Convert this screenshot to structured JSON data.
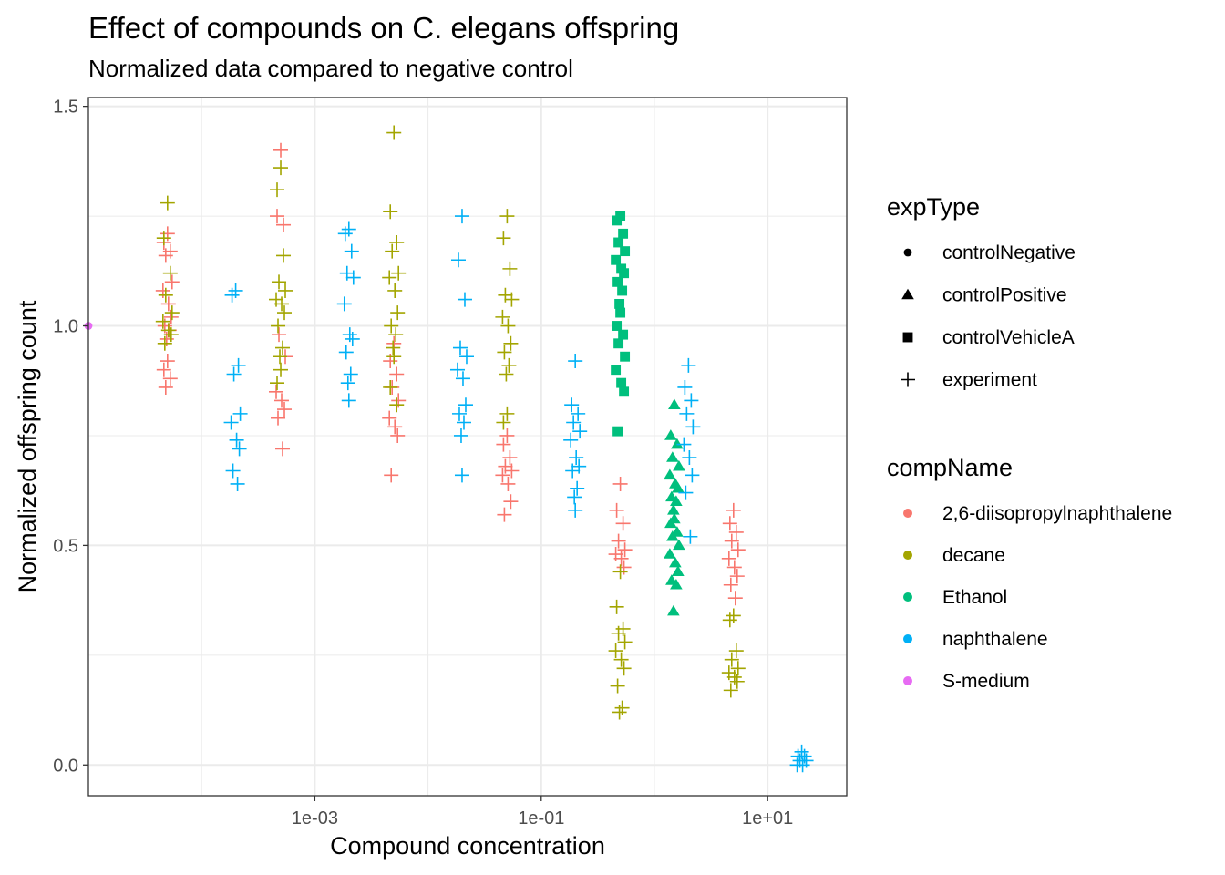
{
  "chart_data": {
    "type": "scatter",
    "title": "Effect of compounds on C. elegans offspring",
    "subtitle": "Normalized data compared to negative control",
    "xlabel": "Compound concentration",
    "ylabel": "Normalized offspring count",
    "x_scale": "log10",
    "xlim": [
      1e-05,
      50
    ],
    "ylim": [
      -0.07,
      1.52
    ],
    "x_ticks": [
      {
        "value": 0.001,
        "label": "1e-03"
      },
      {
        "value": 0.1,
        "label": "1e-01"
      },
      {
        "value": 10,
        "label": "1e+01"
      }
    ],
    "y_ticks": [
      {
        "value": 0,
        "label": "0.0"
      },
      {
        "value": 0.5,
        "label": "0.5"
      },
      {
        "value": 1,
        "label": "1.0"
      },
      {
        "value": 1.5,
        "label": "1.5"
      }
    ],
    "grid": true,
    "legend_placement": "right",
    "shape_legend": {
      "title": "expType",
      "entries": [
        {
          "label": "controlNegative",
          "shape": "circle"
        },
        {
          "label": "controlPositive",
          "shape": "triangle"
        },
        {
          "label": "controlVehicleA",
          "shape": "square"
        },
        {
          "label": "experiment",
          "shape": "plus"
        }
      ]
    },
    "color_legend": {
      "title": "compName",
      "entries": [
        {
          "label": "2,6-diisopropylnaphthalene",
          "color": "#F8766D"
        },
        {
          "label": "decane",
          "color": "#A3A500"
        },
        {
          "label": "Ethanol",
          "color": "#00BF7D"
        },
        {
          "label": "naphthalene",
          "color": "#00B0F6"
        },
        {
          "label": "S-medium",
          "color": "#E76BF3"
        }
      ]
    },
    "series": [
      {
        "name": "2,6-diisopropylnaphthalene",
        "color": "#F8766D",
        "shape": "plus",
        "points": [
          {
            "x": 5e-05,
            "y": [
              1.21,
              1.19,
              1.17,
              1.16,
              1.1,
              1.08,
              1.05,
              1.02,
              1.0,
              0.99,
              0.97,
              0.92,
              0.9,
              0.88,
              0.86
            ]
          },
          {
            "x": 0.0005,
            "y": [
              1.4,
              1.25,
              1.23,
              0.98,
              0.93,
              0.85,
              0.83,
              0.81,
              0.79,
              0.72
            ]
          },
          {
            "x": 0.005,
            "y": [
              0.96,
              0.92,
              0.89,
              0.86,
              0.83,
              0.79,
              0.77,
              0.75,
              0.66
            ]
          },
          {
            "x": 0.05,
            "y": [
              0.75,
              0.73,
              0.7,
              0.68,
              0.67,
              0.66,
              0.64,
              0.6,
              0.57
            ]
          },
          {
            "x": 0.5,
            "y": [
              0.64,
              0.58,
              0.55,
              0.51,
              0.49,
              0.48,
              0.47,
              0.45
            ]
          },
          {
            "x": 5,
            "y": [
              0.58,
              0.55,
              0.53,
              0.51,
              0.49,
              0.47,
              0.45,
              0.43,
              0.41,
              0.38
            ]
          }
        ]
      },
      {
        "name": "decane",
        "color": "#A3A500",
        "shape": "plus",
        "points": [
          {
            "x": 5e-05,
            "y": [
              1.28,
              1.2,
              1.12,
              1.07,
              1.03,
              1.01,
              0.99,
              0.98,
              0.96
            ]
          },
          {
            "x": 0.0005,
            "y": [
              1.36,
              1.31,
              1.16,
              1.1,
              1.08,
              1.06,
              1.05,
              1.03,
              1.0,
              0.95,
              0.93,
              0.9,
              0.87
            ]
          },
          {
            "x": 0.005,
            "y": [
              1.44,
              1.26,
              1.19,
              1.17,
              1.12,
              1.11,
              1.08,
              1.03,
              1.0,
              0.98,
              0.95,
              0.93,
              0.86,
              0.82
            ]
          },
          {
            "x": 0.05,
            "y": [
              1.25,
              1.2,
              1.13,
              1.07,
              1.06,
              1.02,
              1.0,
              0.96,
              0.94,
              0.91,
              0.89,
              0.8,
              0.78
            ]
          },
          {
            "x": 0.5,
            "y": [
              0.44,
              0.36,
              0.31,
              0.3,
              0.28,
              0.26,
              0.24,
              0.22,
              0.18,
              0.13,
              0.12
            ]
          },
          {
            "x": 5,
            "y": [
              0.34,
              0.33,
              0.26,
              0.24,
              0.22,
              0.21,
              0.2,
              0.19,
              0.17
            ]
          }
        ]
      },
      {
        "name": "Ethanol",
        "color": "#00BF7D",
        "shape": "square",
        "points": [
          {
            "x": 0.5,
            "y": [
              1.25,
              1.24,
              1.21,
              1.19,
              1.17,
              1.15,
              1.13,
              1.12,
              1.1,
              1.08,
              1.05,
              1.03,
              1.0,
              0.98,
              0.96,
              0.93,
              0.9,
              0.87,
              0.85,
              0.76
            ]
          }
        ]
      },
      {
        "name": "Ethanol",
        "color": "#00BF7D",
        "shape": "triangle",
        "points": [
          {
            "x": 1.5,
            "y": [
              0.82,
              0.75,
              0.73,
              0.7,
              0.68,
              0.66,
              0.64,
              0.63,
              0.61,
              0.6,
              0.58,
              0.56,
              0.55,
              0.53,
              0.52,
              0.5,
              0.48,
              0.46,
              0.44,
              0.42,
              0.41,
              0.35
            ]
          }
        ]
      },
      {
        "name": "naphthalene",
        "color": "#00B0F6",
        "shape": "plus",
        "points": [
          {
            "x": 0.0002,
            "y": [
              1.08,
              1.07,
              0.91,
              0.89,
              0.8,
              0.78,
              0.74,
              0.72,
              0.67,
              0.64
            ]
          },
          {
            "x": 0.002,
            "y": [
              1.22,
              1.21,
              1.17,
              1.12,
              1.11,
              1.05,
              0.98,
              0.97,
              0.94,
              0.89,
              0.87,
              0.83
            ]
          },
          {
            "x": 0.02,
            "y": [
              1.25,
              1.15,
              1.06,
              0.95,
              0.93,
              0.9,
              0.88,
              0.82,
              0.8,
              0.78,
              0.75,
              0.66
            ]
          },
          {
            "x": 0.2,
            "y": [
              0.92,
              0.82,
              0.8,
              0.78,
              0.76,
              0.74,
              0.7,
              0.68,
              0.67,
              0.63,
              0.61,
              0.58
            ]
          },
          {
            "x": 2,
            "y": [
              0.91,
              0.86,
              0.83,
              0.8,
              0.77,
              0.73,
              0.7,
              0.66,
              0.62,
              0.52
            ]
          },
          {
            "x": 20,
            "y": [
              0.03,
              0.02,
              0.02,
              0.01,
              0.01,
              0.0,
              0.0
            ]
          }
        ]
      },
      {
        "name": "S-medium",
        "color": "#E76BF3",
        "shape": "circle",
        "points": [
          {
            "x": 1e-05,
            "y": [
              1.0
            ]
          }
        ]
      }
    ]
  }
}
